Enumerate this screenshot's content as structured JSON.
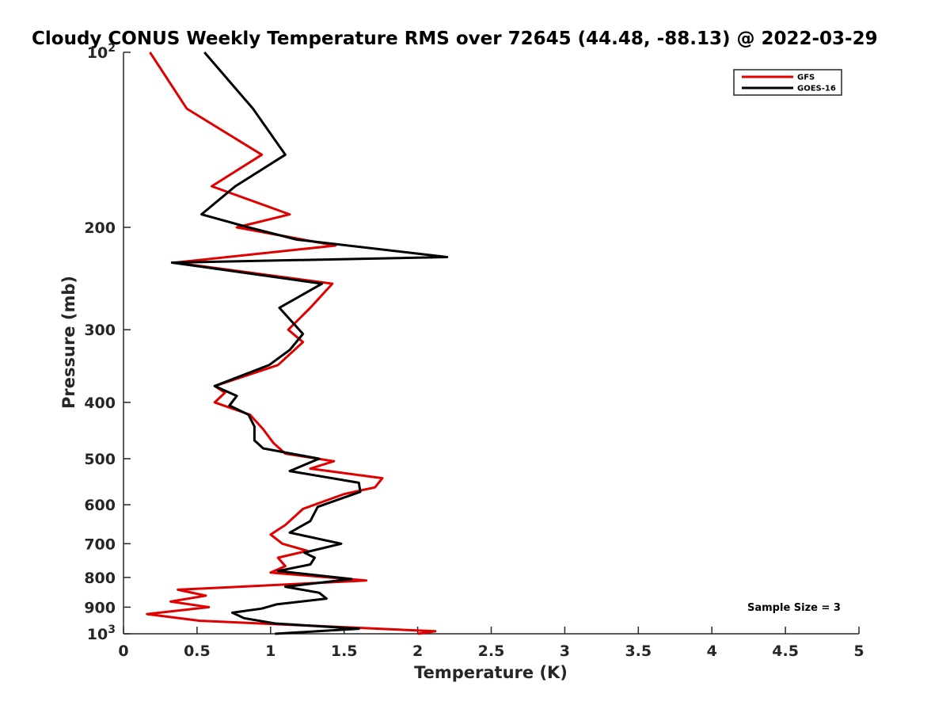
{
  "chart_data": {
    "type": "line",
    "title": "Cloudy CONUS Weekly Temperature RMS over 72645 (44.48, -88.13) @ 2022-03-29",
    "xlabel": "Temperature (K)",
    "ylabel": "Pressure (mb)",
    "xlim": [
      0,
      5
    ],
    "ylim": [
      100,
      1000
    ],
    "y_scale": "log",
    "y_reversed": true,
    "x_ticks": [
      "0",
      "0.5",
      "1",
      "1.5",
      "2",
      "2.5",
      "3",
      "3.5",
      "4",
      "4.5",
      "5"
    ],
    "y_ticks": [
      {
        "value": 100,
        "base": "10",
        "exp": "2"
      },
      {
        "value": 200,
        "label": "200"
      },
      {
        "value": 300,
        "label": "300"
      },
      {
        "value": 400,
        "label": "400"
      },
      {
        "value": 500,
        "label": "500"
      },
      {
        "value": 600,
        "label": "600"
      },
      {
        "value": 700,
        "label": "700"
      },
      {
        "value": 800,
        "label": "800"
      },
      {
        "value": 900,
        "label": "900"
      },
      {
        "value": 1000,
        "base": "10",
        "exp": "3"
      }
    ],
    "grid": false,
    "legend_position": "top-right",
    "annotation": "Sample Size = 3",
    "series": [
      {
        "name": "GFS",
        "color": "#e00000",
        "points": [
          [
            0.18,
            100
          ],
          [
            0.43,
            125
          ],
          [
            0.94,
            150
          ],
          [
            0.6,
            170
          ],
          [
            1.13,
            190
          ],
          [
            0.77,
            200
          ],
          [
            1.44,
            215
          ],
          [
            0.35,
            230
          ],
          [
            1.42,
            250
          ],
          [
            1.27,
            275
          ],
          [
            1.12,
            300
          ],
          [
            1.22,
            315
          ],
          [
            1.05,
            345
          ],
          [
            0.62,
            375
          ],
          [
            0.69,
            385
          ],
          [
            0.62,
            400
          ],
          [
            0.86,
            420
          ],
          [
            0.95,
            445
          ],
          [
            1.02,
            470
          ],
          [
            1.1,
            490
          ],
          [
            1.43,
            505
          ],
          [
            1.27,
            520
          ],
          [
            1.76,
            540
          ],
          [
            1.71,
            560
          ],
          [
            1.5,
            575
          ],
          [
            1.22,
            610
          ],
          [
            1.1,
            650
          ],
          [
            1.0,
            675
          ],
          [
            1.08,
            700
          ],
          [
            1.25,
            720
          ],
          [
            1.05,
            740
          ],
          [
            1.1,
            765
          ],
          [
            1.0,
            785
          ],
          [
            1.65,
            810
          ],
          [
            0.37,
            840
          ],
          [
            0.56,
            860
          ],
          [
            0.32,
            880
          ],
          [
            0.58,
            900
          ],
          [
            0.16,
            925
          ],
          [
            0.52,
            950
          ],
          [
            2.12,
            990
          ],
          [
            2.0,
            1000
          ]
        ]
      },
      {
        "name": "GOES-16",
        "color": "#000000",
        "points": [
          [
            0.55,
            100
          ],
          [
            0.88,
            125
          ],
          [
            1.1,
            150
          ],
          [
            0.76,
            170
          ],
          [
            0.53,
            190
          ],
          [
            0.85,
            200
          ],
          [
            1.18,
            210
          ],
          [
            2.2,
            225
          ],
          [
            0.33,
            230
          ],
          [
            1.35,
            250
          ],
          [
            1.06,
            275
          ],
          [
            1.22,
            305
          ],
          [
            1.13,
            325
          ],
          [
            0.99,
            345
          ],
          [
            0.62,
            375
          ],
          [
            0.77,
            390
          ],
          [
            0.72,
            405
          ],
          [
            0.85,
            420
          ],
          [
            0.89,
            440
          ],
          [
            0.89,
            465
          ],
          [
            0.95,
            480
          ],
          [
            1.33,
            500
          ],
          [
            1.13,
            525
          ],
          [
            1.6,
            550
          ],
          [
            1.61,
            570
          ],
          [
            1.32,
            605
          ],
          [
            1.27,
            640
          ],
          [
            1.13,
            670
          ],
          [
            1.48,
            700
          ],
          [
            1.23,
            725
          ],
          [
            1.3,
            740
          ],
          [
            1.27,
            760
          ],
          [
            1.05,
            780
          ],
          [
            1.55,
            805
          ],
          [
            1.1,
            830
          ],
          [
            1.33,
            850
          ],
          [
            1.38,
            870
          ],
          [
            1.04,
            890
          ],
          [
            0.94,
            905
          ],
          [
            0.74,
            920
          ],
          [
            0.82,
            940
          ],
          [
            1.03,
            960
          ],
          [
            1.6,
            980
          ],
          [
            1.03,
            1000
          ]
        ]
      }
    ]
  }
}
